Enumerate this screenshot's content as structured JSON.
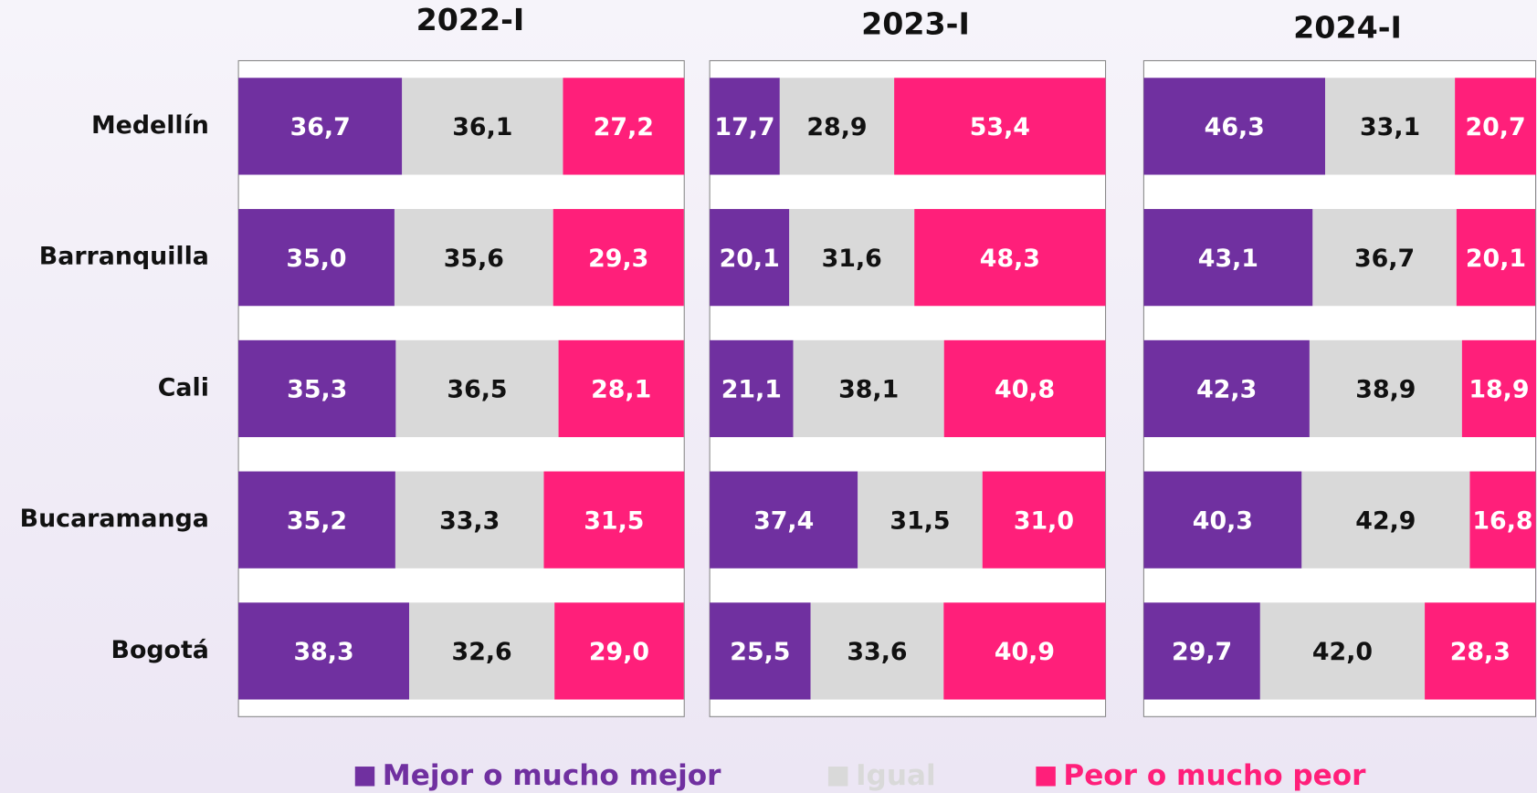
{
  "chart_data": {
    "type": "bar",
    "panels": [
      "2022-I",
      "2023-I",
      "2024-I"
    ],
    "categories": [
      "Medellín",
      "Barranquilla",
      "Cali",
      "Bucaramanga",
      "Bogotá"
    ],
    "xlim": [
      0,
      100
    ],
    "series": [
      {
        "name": "Mejor o mucho mejor",
        "color": "#7030a0",
        "values": [
          [
            36.7,
            35.0,
            35.3,
            35.2,
            38.3
          ],
          [
            17.7,
            20.1,
            21.1,
            37.4,
            25.5
          ],
          [
            46.3,
            43.1,
            42.3,
            40.3,
            29.7
          ]
        ],
        "value_labels": [
          [
            "36,7",
            "35,0",
            "35,3",
            "35,2",
            "38,3"
          ],
          [
            "17,7",
            "20,1",
            "21,1",
            "37,4",
            "25,5"
          ],
          [
            "46,3",
            "43,1",
            "42,3",
            "40,3",
            "29,7"
          ]
        ]
      },
      {
        "name": "Igual",
        "color": "#d9d9d9",
        "values": [
          [
            36.1,
            35.6,
            36.5,
            33.3,
            32.6
          ],
          [
            28.9,
            31.6,
            38.1,
            31.5,
            33.6
          ],
          [
            33.1,
            36.7,
            38.9,
            42.9,
            42.0
          ]
        ],
        "value_labels": [
          [
            "36,1",
            "35,6",
            "36,5",
            "33,3",
            "32,6"
          ],
          [
            "28,9",
            "31,6",
            "38,1",
            "31,5",
            "33,6"
          ],
          [
            "33,1",
            "36,7",
            "38,9",
            "42,9",
            "42,0"
          ]
        ]
      },
      {
        "name": "Peor o mucho peor",
        "color": "#ff1f7a",
        "values": [
          [
            27.2,
            29.3,
            28.1,
            31.5,
            29.0
          ],
          [
            53.4,
            48.3,
            40.8,
            31.0,
            40.9
          ],
          [
            20.7,
            20.1,
            18.9,
            16.8,
            28.3
          ]
        ],
        "value_labels": [
          [
            "27,2",
            "29,3",
            "28,1",
            "31,5",
            "29,0"
          ],
          [
            "53,4",
            "48,3",
            "40,8",
            "31,0",
            "40,9"
          ],
          [
            "20,7",
            "20,1",
            "18,9",
            "16,8",
            "28,3"
          ]
        ]
      }
    ]
  }
}
